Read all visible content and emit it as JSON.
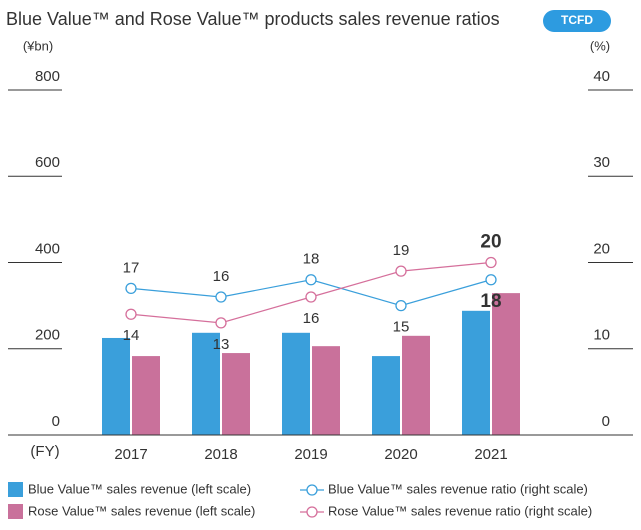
{
  "chart_data": {
    "type": "bar",
    "title": "Blue Value™ and Rose Value™ products sales revenue ratios",
    "badge": "TCFD",
    "y_label": "(¥bn)",
    "y2_label": "(%)",
    "x_label": "(FY)",
    "categories": [
      "2017",
      "2018",
      "2019",
      "2020",
      "2021"
    ],
    "ylim": [
      0,
      800
    ],
    "yticks": [
      0,
      200,
      400,
      600,
      800
    ],
    "y2lim": [
      0,
      40
    ],
    "y2ticks": [
      0,
      10,
      20,
      30,
      40
    ],
    "series": [
      {
        "name": "Blue Value™ sales revenue (left scale)",
        "type": "bar",
        "color": "#3a9fdb",
        "values": [
          225,
          237,
          237,
          183,
          288
        ]
      },
      {
        "name": "Rose Value™ sales revenue (left scale)",
        "type": "bar",
        "color": "#c9719b",
        "values": [
          183,
          190,
          206,
          230,
          329
        ]
      },
      {
        "name": "Blue Value™ sales revenue ratio (right scale)",
        "type": "line",
        "axis": "y2",
        "color": "#3a9fdb",
        "values": [
          17,
          16,
          18,
          15,
          18
        ]
      },
      {
        "name": "Rose Value™ sales revenue ratio (right scale)",
        "type": "line",
        "axis": "y2",
        "color": "#d56f9b",
        "values": [
          14,
          13,
          16,
          19,
          20
        ]
      }
    ]
  }
}
